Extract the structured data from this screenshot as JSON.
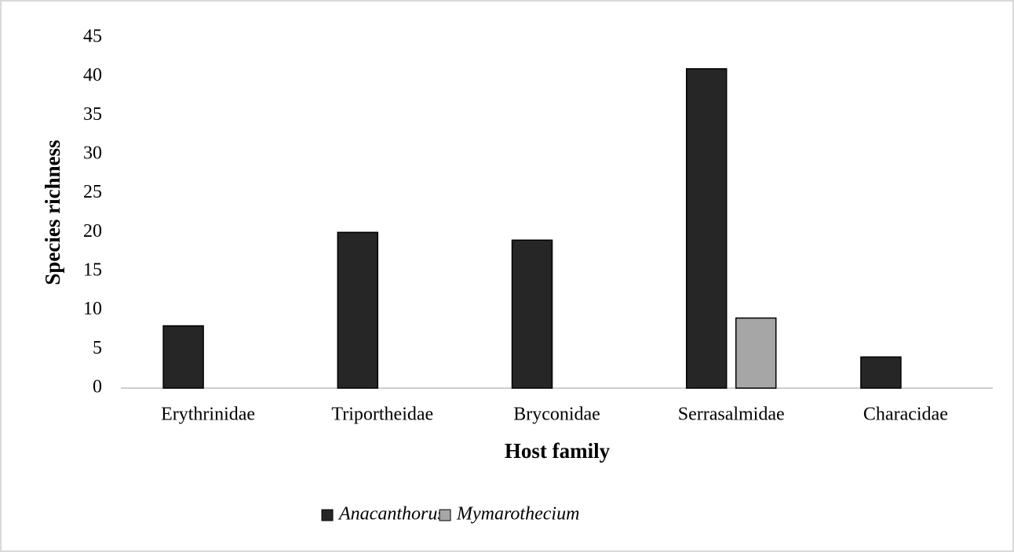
{
  "chart_data": {
    "type": "bar",
    "x_label": "Host family",
    "y_label": "Species richness",
    "categories": [
      "Erythrinidae",
      "Triportheidae",
      "Bryconidae",
      "Serrasalmidae",
      "Characidae"
    ],
    "series": [
      {
        "name": "Anacanthorus",
        "color": "#262626",
        "values": [
          8,
          20,
          19,
          41,
          4
        ]
      },
      {
        "name": "Mymarothecium",
        "color": "#a6a6a6",
        "values": [
          null,
          null,
          null,
          9,
          null
        ]
      }
    ],
    "ylim": [
      0,
      45
    ],
    "yticks": [
      0,
      5,
      10,
      15,
      20,
      25,
      30,
      35,
      40,
      45
    ],
    "grid": false,
    "legend": "bottom"
  }
}
